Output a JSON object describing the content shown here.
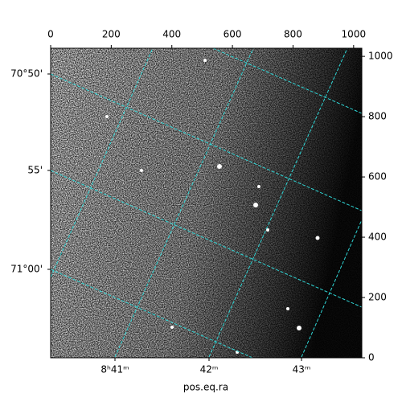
{
  "chart_data": {
    "type": "image",
    "xlabel": "pos.eq.ra",
    "xlim": [
      0,
      1027
    ],
    "xticks": [
      0,
      200,
      400,
      600,
      800,
      1000
    ],
    "ylim": [
      0,
      1027
    ],
    "yticks": [
      0,
      200,
      400,
      600,
      800,
      1000
    ],
    "dec_labels": [
      "70°50'",
      "55'",
      "71°00'"
    ],
    "ra_labels": [
      "8ʰ41ᵐ",
      "42ᵐ",
      "43ᵐ"
    ],
    "grid": true,
    "grid_color": "#2fd6d6"
  }
}
